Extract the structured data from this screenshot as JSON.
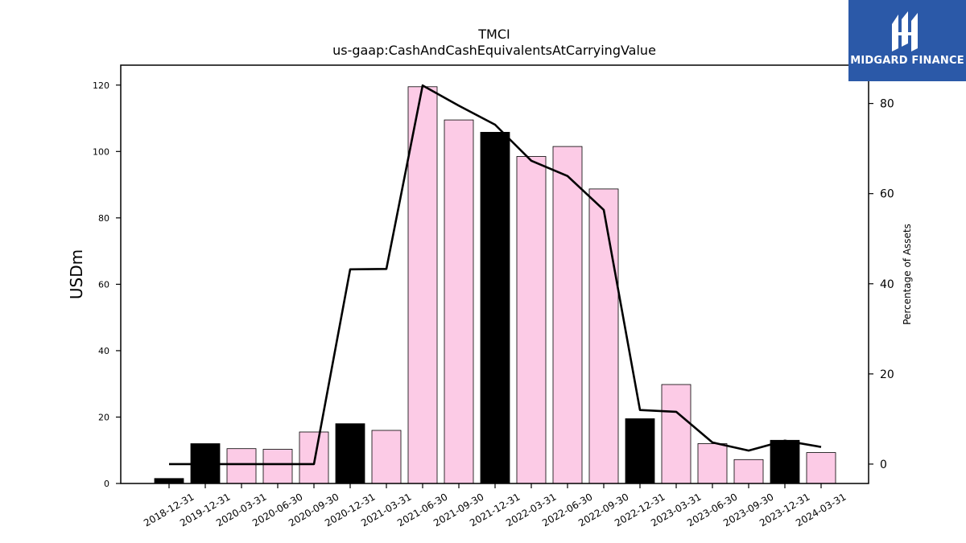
{
  "brand": {
    "name": "MIDGARD FINANCE",
    "bg_color": "#2b59a8"
  },
  "chart_data": {
    "type": "bar",
    "title": "TMCI",
    "subtitle": "us-gaap:CashAndCashEquivalentsAtCarryingValue",
    "ylabel": "USDm",
    "y2label": "Percentage of Assets",
    "ylim": [
      0,
      126
    ],
    "y2lim": [
      -4.3,
      88.5
    ],
    "yticks": [
      0,
      20,
      40,
      60,
      80,
      100,
      120
    ],
    "y2ticks": [
      0,
      20,
      40,
      60,
      80
    ],
    "categories": [
      "2018-12-31",
      "2019-12-31",
      "2020-03-31",
      "2020-06-30",
      "2020-09-30",
      "2020-12-31",
      "2021-03-31",
      "2021-06-30",
      "2021-09-30",
      "2021-12-31",
      "2022-03-31",
      "2022-06-30",
      "2022-09-30",
      "2022-12-31",
      "2023-03-31",
      "2023-06-30",
      "2023-09-30",
      "2023-12-31",
      "2024-03-31"
    ],
    "series": [
      {
        "kind": "bar",
        "axis": "left",
        "values": [
          1.5,
          12,
          10.5,
          10.3,
          15.5,
          18,
          16,
          119.5,
          109.5,
          105.8,
          98.5,
          101.5,
          88.7,
          19.5,
          29.8,
          12,
          7.2,
          13,
          9.3
        ],
        "colors": [
          "#000000",
          "#000000",
          "#fccbe6",
          "#fccbe6",
          "#fccbe6",
          "#000000",
          "#fccbe6",
          "#fccbe6",
          "#fccbe6",
          "#000000",
          "#fccbe6",
          "#fccbe6",
          "#fccbe6",
          "#000000",
          "#fccbe6",
          "#fccbe6",
          "#fccbe6",
          "#000000",
          "#fccbe6"
        ]
      },
      {
        "kind": "line",
        "axis": "right",
        "color": "#000000",
        "values": [
          0,
          0,
          0,
          0,
          0,
          43.2,
          43.3,
          84,
          79.5,
          75.3,
          67.3,
          63.9,
          56.4,
          12,
          11.6,
          4.8,
          3,
          5.2,
          3.8
        ]
      }
    ],
    "grid": false,
    "legend": "none"
  }
}
